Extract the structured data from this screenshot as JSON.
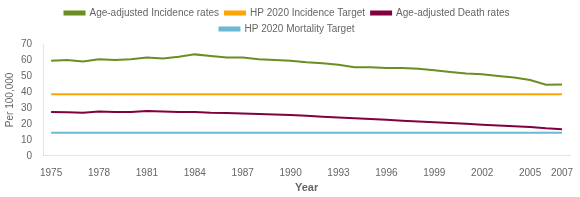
{
  "chart_data": {
    "type": "line",
    "xlabel": "Year",
    "ylabel": "Per 100,000",
    "x": [
      1975,
      1976,
      1977,
      1978,
      1979,
      1980,
      1981,
      1982,
      1983,
      1984,
      1985,
      1986,
      1987,
      1988,
      1989,
      1990,
      1991,
      1992,
      1993,
      1994,
      1995,
      1996,
      1997,
      1998,
      1999,
      2000,
      2001,
      2002,
      2003,
      2004,
      2005,
      2006,
      2007
    ],
    "series": [
      {
        "name": "Age-adjusted Incidence rates",
        "color": "#6b8e23",
        "values": [
          59.5,
          60.0,
          59.0,
          60.5,
          60.0,
          60.5,
          61.5,
          61.0,
          62.0,
          63.5,
          62.5,
          61.5,
          61.5,
          60.5,
          60.0,
          59.5,
          58.5,
          58.0,
          57.0,
          55.5,
          55.5,
          55.0,
          55.0,
          54.5,
          53.5,
          52.5,
          51.5,
          51.0,
          50.0,
          49.0,
          47.5,
          44.5,
          44.7
        ]
      },
      {
        "name": "HP 2020 Incidence Target",
        "color": "#ffa500",
        "values": [
          38.6,
          38.6,
          38.6,
          38.6,
          38.6,
          38.6,
          38.6,
          38.6,
          38.6,
          38.6,
          38.6,
          38.6,
          38.6,
          38.6,
          38.6,
          38.6,
          38.6,
          38.6,
          38.6,
          38.6,
          38.6,
          38.6,
          38.6,
          38.6,
          38.6,
          38.6,
          38.6,
          38.6,
          38.6,
          38.6,
          38.6,
          38.6,
          38.6
        ]
      },
      {
        "name": "Age-adjusted Death rates",
        "color": "#800040",
        "values": [
          27.5,
          27.2,
          27.0,
          27.8,
          27.5,
          27.5,
          28.0,
          27.8,
          27.5,
          27.5,
          27.0,
          26.8,
          26.5,
          26.2,
          25.8,
          25.5,
          25.0,
          24.5,
          24.0,
          23.5,
          23.0,
          22.5,
          22.0,
          21.5,
          21.0,
          20.5,
          20.0,
          19.5,
          19.0,
          18.5,
          18.0,
          17.2,
          16.7
        ]
      },
      {
        "name": "HP 2020 Mortality Target",
        "color": "#6bb8d4",
        "values": [
          14.5,
          14.5,
          14.5,
          14.5,
          14.5,
          14.5,
          14.5,
          14.5,
          14.5,
          14.5,
          14.5,
          14.5,
          14.5,
          14.5,
          14.5,
          14.5,
          14.5,
          14.5,
          14.5,
          14.5,
          14.5,
          14.5,
          14.5,
          14.5,
          14.5,
          14.5,
          14.5,
          14.5,
          14.5,
          14.5,
          14.5,
          14.5,
          14.5
        ]
      }
    ],
    "xlim": [
      1974.5,
      2007.5
    ],
    "xticks": [
      1975,
      1978,
      1981,
      1984,
      1987,
      1990,
      1993,
      1996,
      1999,
      2002,
      2005,
      2007
    ],
    "ylim": [
      0,
      70
    ],
    "yticks": [
      0,
      10,
      20,
      30,
      40,
      50,
      60,
      70
    ],
    "grid": false,
    "legend": "top"
  }
}
